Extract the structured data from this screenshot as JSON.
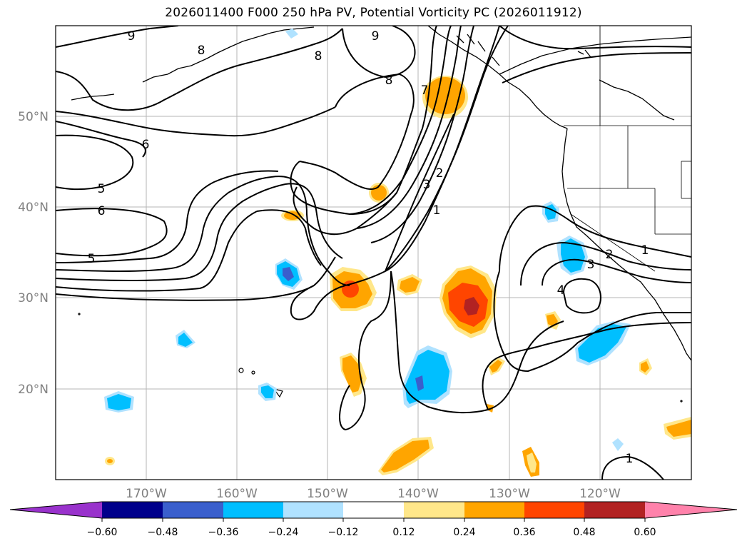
{
  "title": "2026011400 F000 250 hPa PV, Potential Vorticity PC (2026011912)",
  "lat_labels": [
    "50°N",
    "40°N",
    "30°N",
    "20°N"
  ],
  "lon_labels": [
    "170°W",
    "160°W",
    "150°W",
    "140°W",
    "130°W",
    "120°W"
  ],
  "colorbar": {
    "ticks": [
      "−0.60",
      "−0.48",
      "−0.36",
      "−0.24",
      "−0.12",
      "0.12",
      "0.24",
      "0.36",
      "0.48",
      "0.60"
    ],
    "colors": [
      "#9932cc",
      "#00008b",
      "#3a5fcd",
      "#00bfff",
      "#b0e2ff",
      "#ffffff",
      "#ffe78a",
      "#ffa500",
      "#ff4500",
      "#b22222",
      "#ff82ab"
    ]
  },
  "contour_labels": [
    "9",
    "8",
    "8",
    "9",
    "8",
    "7",
    "6",
    "5",
    "6",
    "5",
    "3",
    "2",
    "1",
    "2",
    "3",
    "4",
    "1",
    "1"
  ]
}
